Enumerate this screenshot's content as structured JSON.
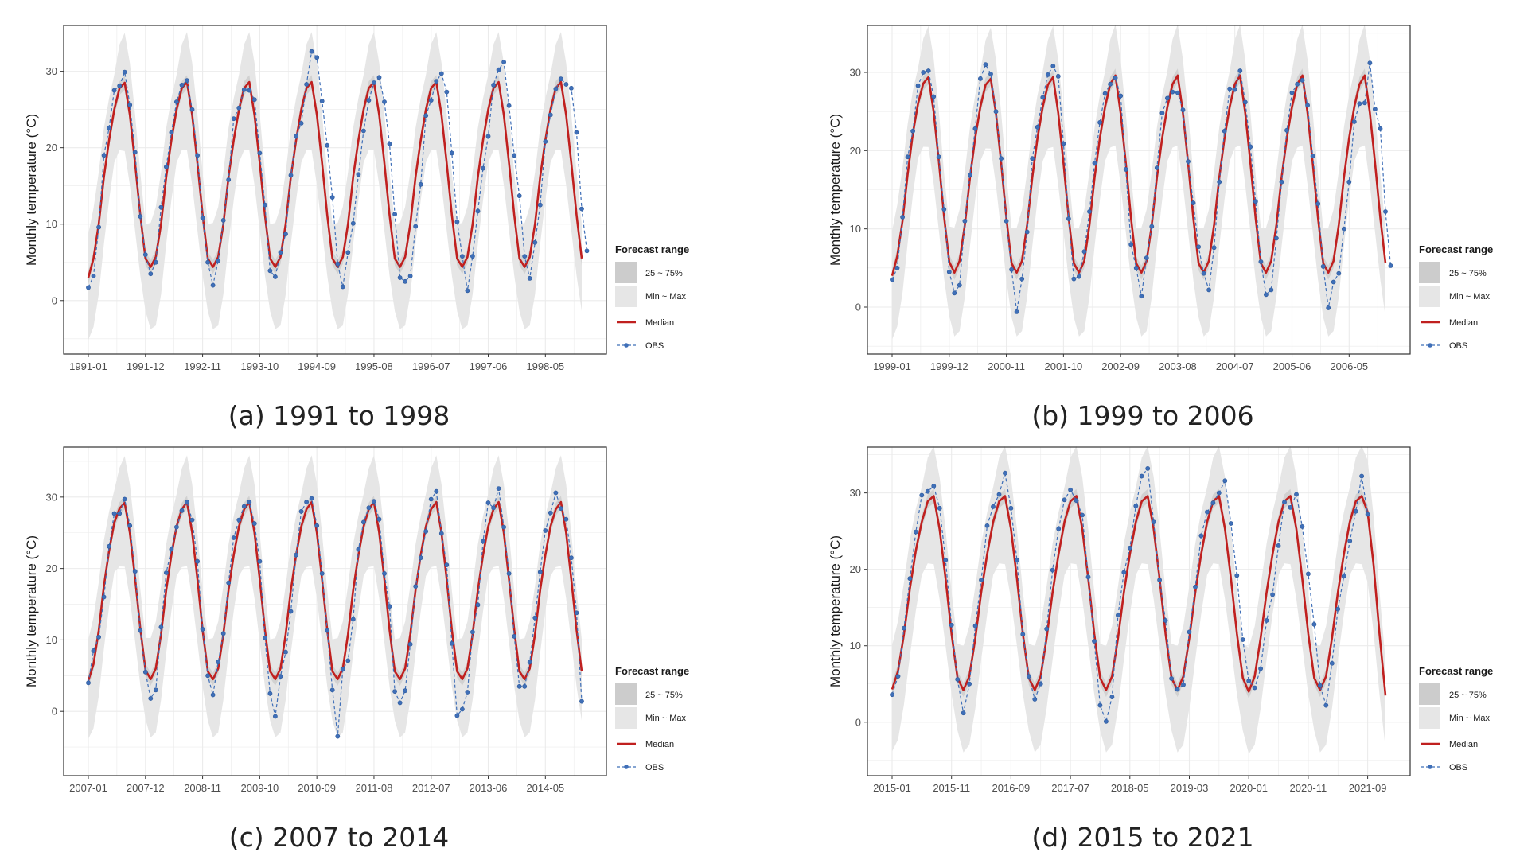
{
  "figure": {
    "panels_note": "Four monthly temperature forecast panels"
  },
  "legend": {
    "title": "Forecast range",
    "iqr": "25 ~ 75%",
    "minmax": "Min ~ Max",
    "median": "Median",
    "obs": "OBS"
  },
  "colors": {
    "minmax_band": "#e6e6e6",
    "iqr_band": "#cccccc",
    "median": "#c0201f",
    "obs": "#3f6fb8",
    "grid": "#ebebeb",
    "frame": "#333333"
  },
  "chart_data": [
    {
      "type": "line",
      "caption": "(a) 1991 to 1998",
      "ylabel": "Monthly temperature (°C)",
      "ylim": [
        -7,
        36
      ],
      "yticks": [
        0,
        10,
        20,
        30
      ],
      "x_start": "1991-01",
      "n_months": 96,
      "obs_count": 96,
      "xtick_labels": [
        "1991-01",
        "1991-12",
        "1992-11",
        "1993-10",
        "1994-09",
        "1995-08",
        "1996-07",
        "1997-06",
        "1998-05"
      ],
      "xtick_month_index": [
        0,
        11,
        22,
        33,
        44,
        55,
        66,
        77,
        88
      ],
      "median": [
        3.0,
        5.5,
        10.0,
        16.2,
        21.0,
        25.0,
        27.8,
        28.5,
        24.3,
        18.0,
        11.2,
        5.5,
        4.4,
        5.7,
        10.0,
        16.2,
        21.0,
        25.0,
        27.8,
        28.6,
        24.3,
        18.0,
        11.2,
        5.5,
        4.4,
        5.7,
        10.0,
        16.2,
        21.0,
        25.0,
        27.8,
        28.6,
        24.3,
        18.0,
        11.2,
        5.5,
        4.4,
        5.7,
        10.0,
        16.2,
        21.0,
        25.0,
        27.8,
        28.6,
        24.3,
        18.0,
        11.2,
        5.5,
        4.4,
        5.7,
        10.0,
        16.2,
        21.0,
        25.0,
        27.8,
        28.6,
        24.3,
        18.0,
        11.2,
        5.5,
        4.4,
        5.7,
        10.0,
        16.2,
        21.0,
        25.0,
        27.8,
        28.6,
        24.3,
        18.0,
        11.2,
        5.5,
        4.4,
        5.7,
        10.0,
        16.2,
        21.0,
        25.0,
        27.8,
        28.6,
        24.3,
        18.0,
        11.2,
        5.5,
        4.4,
        5.7,
        10.0,
        16.2,
        21.0,
        25.0,
        27.8,
        28.6,
        24.3,
        18.0,
        11.2,
        5.5
      ],
      "obs": [
        1.7,
        3.2,
        9.6,
        19.0,
        22.6,
        27.5,
        28.1,
        29.9,
        25.6,
        19.4,
        11.0,
        6.0,
        3.5,
        5.0,
        12.2,
        17.5,
        22.0,
        26.0,
        28.2,
        28.8,
        25.0,
        19.0,
        10.8,
        5.0,
        2.0,
        5.2,
        10.5,
        15.8,
        23.8,
        25.2,
        27.6,
        27.5,
        26.3,
        19.3,
        12.5,
        3.9,
        3.1,
        6.3,
        8.7,
        16.4,
        21.5,
        23.2,
        28.3,
        32.6,
        31.8,
        26.1,
        20.3,
        13.5,
        4.8,
        1.8,
        6.3,
        10.1,
        16.5,
        22.2,
        26.2,
        28.5,
        29.2,
        26.0,
        20.5,
        11.3,
        3.0,
        2.5,
        3.2,
        9.7,
        15.2,
        24.2,
        26.2,
        28.7,
        29.7,
        27.3,
        19.3,
        10.3,
        5.8,
        1.3,
        5.8,
        11.7,
        17.3,
        21.5,
        28.2,
        30.2,
        31.2,
        25.5,
        19.0,
        13.7,
        5.8,
        2.9,
        7.6,
        12.5,
        20.8,
        24.3,
        27.7,
        29.0,
        28.3,
        27.8,
        22.0,
        12.0,
        6.5
      ]
    },
    {
      "type": "line",
      "caption": "(b) 1999 to 2006",
      "ylabel": "Monthly temperature (°C)",
      "ylim": [
        -6,
        36
      ],
      "yticks": [
        0,
        10,
        20,
        30
      ],
      "x_start": "1999-01",
      "n_months": 96,
      "obs_count": 96,
      "xtick_labels": [
        "1999-01",
        "1999-12",
        "2000-11",
        "2001-10",
        "2002-09",
        "2003-08",
        "2004-07",
        "2005-06",
        "2006-05"
      ],
      "xtick_month_index": [
        0,
        11,
        22,
        33,
        44,
        55,
        66,
        77,
        88
      ],
      "median": [
        4.0,
        6.5,
        11.0,
        17.0,
        22.2,
        26.0,
        28.6,
        29.4,
        25.0,
        18.7,
        11.6,
        5.8,
        4.4,
        5.9,
        10.5,
        16.6,
        21.6,
        25.6,
        28.4,
        29.2,
        24.8,
        18.4,
        11.4,
        5.6,
        4.4,
        5.9,
        10.5,
        16.6,
        21.6,
        25.6,
        28.4,
        29.4,
        24.8,
        18.4,
        11.4,
        5.6,
        4.4,
        5.9,
        10.5,
        16.6,
        21.6,
        25.6,
        28.5,
        29.6,
        24.8,
        18.4,
        11.4,
        5.6,
        4.4,
        5.9,
        10.5,
        16.6,
        21.6,
        25.6,
        28.5,
        29.6,
        24.8,
        18.4,
        11.4,
        5.6,
        4.4,
        5.9,
        10.5,
        16.6,
        21.6,
        25.6,
        28.5,
        29.6,
        24.8,
        18.4,
        11.4,
        5.6,
        4.4,
        5.9,
        10.5,
        16.6,
        21.6,
        25.6,
        28.5,
        29.6,
        24.8,
        18.4,
        11.4,
        5.6,
        4.4,
        5.9,
        10.5,
        16.6,
        21.6,
        25.6,
        28.5,
        29.6,
        24.8,
        18.4,
        11.4,
        5.6
      ],
      "obs": [
        3.5,
        5.0,
        11.5,
        19.2,
        22.5,
        28.3,
        30.0,
        30.2,
        26.9,
        19.2,
        12.5,
        4.5,
        1.8,
        2.8,
        11.0,
        16.9,
        22.8,
        29.2,
        31.0,
        29.8,
        25.0,
        19.0,
        11.0,
        4.8,
        -0.6,
        3.6,
        9.6,
        19.0,
        23.0,
        26.8,
        29.7,
        30.8,
        29.5,
        20.9,
        11.3,
        3.6,
        3.9,
        7.1,
        12.2,
        18.4,
        23.6,
        27.3,
        28.5,
        29.3,
        27.0,
        17.6,
        8.0,
        5.0,
        1.4,
        6.3,
        10.3,
        17.8,
        24.8,
        26.7,
        27.5,
        27.4,
        25.2,
        18.6,
        13.3,
        7.7,
        4.3,
        2.2,
        7.6,
        16.0,
        22.5,
        27.9,
        27.8,
        30.2,
        26.2,
        20.5,
        13.5,
        5.8,
        1.6,
        2.2,
        8.8,
        16.0,
        22.6,
        27.4,
        28.5,
        29.0,
        25.8,
        19.3,
        13.2,
        5.2,
        -0.1,
        3.2,
        4.3,
        10.0,
        16.0,
        23.7,
        26.0,
        26.1,
        31.2,
        25.3,
        22.8,
        12.2,
        5.3
      ]
    },
    {
      "type": "line",
      "caption": "(c) 2007 to 2014",
      "ylabel": "Monthly temperature (°C)",
      "ylim": [
        -9,
        37
      ],
      "yticks": [
        0,
        10,
        20,
        30
      ],
      "x_start": "2007-01",
      "n_months": 96,
      "obs_count": 96,
      "xtick_labels": [
        "2007-01",
        "2007-12",
        "2008-11",
        "2009-10",
        "2010-09",
        "2011-08",
        "2012-07",
        "2013-06",
        "2014-05"
      ],
      "xtick_month_index": [
        0,
        11,
        22,
        33,
        44,
        55,
        66,
        77,
        88
      ],
      "median": [
        4.3,
        6.6,
        11.3,
        17.6,
        22.5,
        26.4,
        28.4,
        29.2,
        25.0,
        18.7,
        11.6,
        5.8,
        4.5,
        6.0,
        10.8,
        17.0,
        21.9,
        25.9,
        28.3,
        29.3,
        25.0,
        18.5,
        11.4,
        5.6,
        4.5,
        6.0,
        10.8,
        17.0,
        21.9,
        25.9,
        28.3,
        29.3,
        25.0,
        18.5,
        11.4,
        5.6,
        4.5,
        6.0,
        10.8,
        17.0,
        21.9,
        25.9,
        28.3,
        29.3,
        25.0,
        18.5,
        11.4,
        5.6,
        4.5,
        6.0,
        10.8,
        17.0,
        21.9,
        25.9,
        28.3,
        29.3,
        25.0,
        18.5,
        11.4,
        5.6,
        4.5,
        6.0,
        10.8,
        17.0,
        21.9,
        25.9,
        28.3,
        29.3,
        25.0,
        18.5,
        11.4,
        5.6,
        4.5,
        6.0,
        10.8,
        17.0,
        21.9,
        25.9,
        28.3,
        29.3,
        25.0,
        18.5,
        11.4,
        5.6,
        4.5,
        6.0,
        10.8,
        17.0,
        21.9,
        25.9,
        28.3,
        29.3,
        25.0,
        18.5,
        11.4,
        5.6
      ],
      "obs": [
        4.0,
        8.5,
        10.4,
        16.0,
        23.1,
        27.7,
        27.7,
        29.7,
        26.0,
        19.6,
        11.3,
        5.5,
        1.8,
        3.0,
        11.8,
        19.4,
        22.7,
        25.8,
        28.1,
        29.3,
        26.8,
        21.0,
        11.5,
        5.0,
        2.3,
        6.9,
        10.9,
        18.0,
        24.3,
        26.8,
        28.7,
        29.3,
        26.3,
        21.0,
        10.3,
        2.5,
        -0.7,
        4.9,
        8.3,
        14.0,
        21.9,
        28.0,
        29.3,
        29.8,
        26.0,
        19.3,
        11.3,
        3.0,
        -3.5,
        5.9,
        7.1,
        12.9,
        22.7,
        26.5,
        28.5,
        29.4,
        26.9,
        19.3,
        14.7,
        2.8,
        1.2,
        2.9,
        9.4,
        17.5,
        21.5,
        25.2,
        29.7,
        30.8,
        24.9,
        20.5,
        9.5,
        -0.6,
        0.3,
        2.7,
        11.1,
        14.9,
        23.8,
        29.2,
        28.5,
        31.2,
        25.8,
        19.3,
        10.5,
        3.5,
        3.5,
        6.9,
        13.1,
        19.5,
        25.3,
        27.8,
        30.6,
        28.4,
        26.9,
        21.5,
        13.8,
        1.4
      ]
    },
    {
      "type": "line",
      "caption": "(d) 2015 to 2021",
      "ylabel": "Monthly temperature (°C)",
      "ylim": [
        -7,
        36
      ],
      "yticks": [
        0,
        10,
        20,
        30
      ],
      "x_start": "2015-01",
      "n_months": 84,
      "obs_count": 81,
      "xtick_labels": [
        "2015-01",
        "2015-11",
        "2016-09",
        "2017-07",
        "2018-05",
        "2019-03",
        "2020-01",
        "2020-11",
        "2021-09"
      ],
      "xtick_month_index": [
        0,
        10,
        20,
        30,
        40,
        50,
        60,
        70,
        80
      ],
      "median": [
        4.3,
        6.7,
        11.5,
        17.5,
        22.5,
        26.2,
        28.9,
        29.6,
        25.2,
        18.8,
        11.6,
        5.8,
        4.2,
        6.0,
        11.0,
        17.0,
        22.0,
        26.2,
        28.9,
        29.6,
        25.3,
        18.8,
        11.6,
        5.8,
        4.2,
        6.0,
        11.0,
        17.0,
        22.0,
        26.2,
        28.9,
        29.6,
        25.3,
        18.8,
        11.6,
        5.8,
        4.2,
        6.0,
        11.0,
        17.0,
        22.0,
        26.2,
        28.9,
        29.6,
        25.3,
        18.8,
        11.6,
        5.8,
        4.2,
        6.0,
        11.0,
        17.0,
        22.0,
        26.2,
        28.9,
        29.6,
        25.3,
        18.8,
        11.6,
        5.8,
        4.0,
        6.0,
        11.0,
        17.0,
        22.0,
        26.2,
        28.9,
        29.6,
        25.3,
        18.8,
        11.6,
        5.8,
        4.2,
        6.0,
        11.0,
        17.0,
        22.0,
        26.2,
        28.9,
        29.6,
        27.5,
        20.5,
        11.5,
        3.5
      ],
      "obs": [
        3.6,
        6.0,
        12.3,
        18.8,
        24.9,
        29.7,
        30.2,
        30.9,
        28.0,
        21.2,
        12.7,
        5.6,
        1.2,
        5.0,
        12.6,
        18.6,
        25.7,
        28.2,
        29.8,
        32.6,
        28.0,
        21.2,
        11.5,
        6.0,
        3.0,
        5.0,
        12.2,
        19.9,
        25.3,
        29.1,
        30.4,
        29.0,
        27.1,
        19.0,
        10.6,
        2.2,
        0.1,
        3.3,
        14.0,
        19.6,
        22.8,
        28.3,
        32.2,
        33.2,
        26.2,
        18.6,
        13.3,
        5.7,
        4.3,
        4.9,
        11.8,
        17.7,
        24.4,
        27.5,
        28.7,
        30.0,
        31.6,
        26.0,
        19.2,
        10.8,
        5.4,
        4.5,
        7.0,
        13.3,
        16.7,
        23.1,
        28.8,
        28.1,
        29.8,
        25.6,
        19.4,
        12.8,
        4.8,
        2.2,
        7.7,
        14.8,
        19.1,
        23.7,
        27.6,
        32.2,
        27.2
      ]
    }
  ]
}
